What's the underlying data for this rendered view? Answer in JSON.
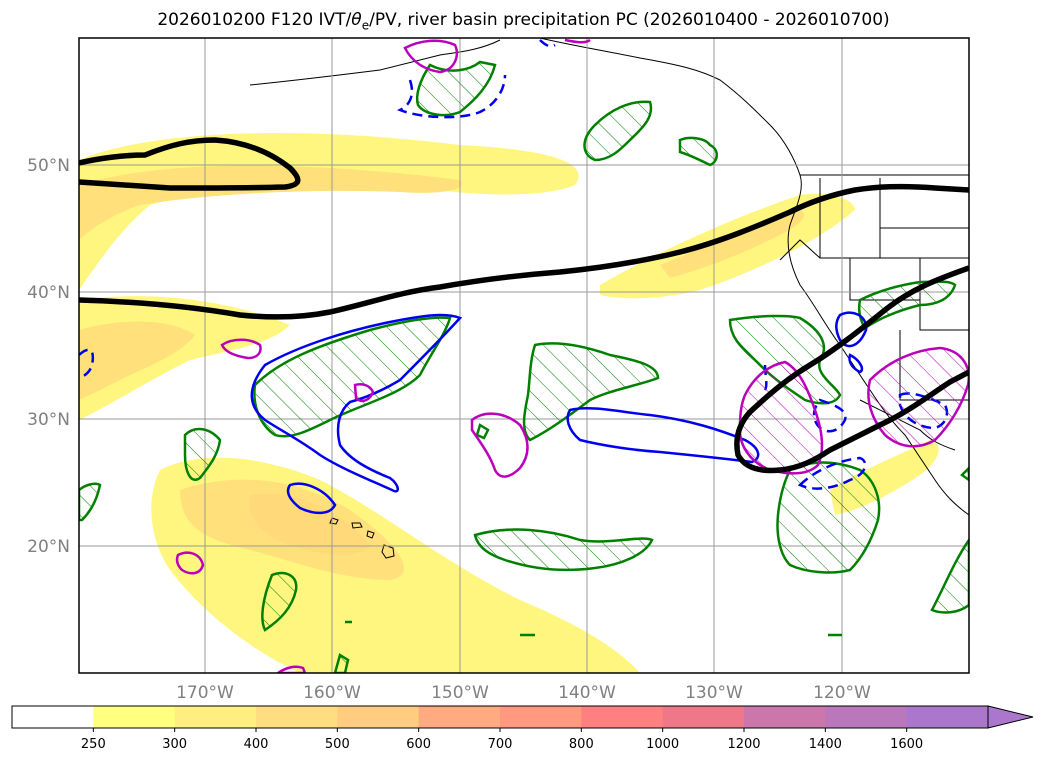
{
  "title": {
    "prefix": "2026010200 F120 IVT/",
    "theta": "θ",
    "sub": "e",
    "suffix": "/PV, river basin precipitation PC (2026010400 - 2026010700)"
  },
  "axes": {
    "lat_labels": [
      "50°N",
      "40°N",
      "30°N",
      "20°N"
    ],
    "lon_labels": [
      "170°W",
      "160°W",
      "150°W",
      "140°W",
      "130°W",
      "120°W"
    ]
  },
  "colorbar": {
    "ticks": [
      "250",
      "300",
      "400",
      "500",
      "600",
      "700",
      "800",
      "1000",
      "1200",
      "1400",
      "1600"
    ],
    "colors": [
      "#ffffff",
      "#ffff80",
      "#ffee80",
      "#ffdd80",
      "#ffcc80",
      "#ffaa80",
      "#ff9980",
      "#ff8080",
      "#ee7788",
      "#cc77aa",
      "#bb77bb",
      "#aa77cc"
    ],
    "extend": "max"
  },
  "map_colors": {
    "ivt_low": "#fff680",
    "ivt_mid": "#ffe07a",
    "theta_contour": "#000000",
    "pc_positive": "#008000",
    "pc_negative": "#0000ee",
    "pv_contour": "#bb00bb"
  }
}
